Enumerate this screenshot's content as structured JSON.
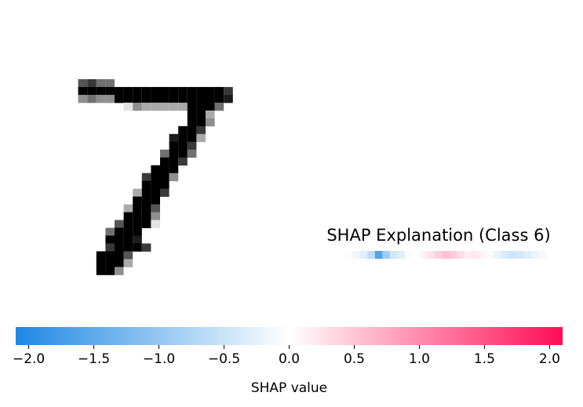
{
  "chart_data": {
    "type": "heatmap",
    "title": "SHAP Explanation (Class 6)",
    "digit_image": {
      "rows": 27,
      "cols": 21,
      "pixels": [
        "",
        "",
        "",
        "",
        "",
        "",
        "",
        "",
        "",
        "",
        "",
        "",
        "",
        "",
        "",
        "",
        "",
        "",
        "",
        "",
        "",
        "",
        "",
        "",
        "",
        "",
        ""
      ]
    },
    "shap_strip": {
      "min": -2.1,
      "max": 2.1,
      "values": [
        -0.05,
        -0.15,
        -0.3,
        -0.6,
        -1.6,
        -0.9,
        -0.4,
        -0.3,
        -0.05,
        0.0,
        0.1,
        0.25,
        0.4,
        0.55,
        0.45,
        0.3,
        0.15,
        0.2,
        0.1,
        -0.05,
        -0.2,
        -0.35,
        -0.45,
        -0.4,
        -0.3,
        -0.2,
        -0.1
      ]
    },
    "colorbar": {
      "label": "SHAP value",
      "min": -2.1,
      "max": 2.1,
      "ticks": [
        -2.0,
        -1.5,
        -1.0,
        -0.5,
        0.0,
        0.5,
        1.0,
        1.5,
        2.0
      ],
      "tick_labels": [
        "−2.0",
        "−1.5",
        "−1.0",
        "−0.5",
        "0.0",
        "0.5",
        "1.0",
        "1.5",
        "2.0"
      ],
      "neg_color": "#1e88e5",
      "mid_color": "#ffffff",
      "pos_color": "#ff0d57"
    }
  }
}
